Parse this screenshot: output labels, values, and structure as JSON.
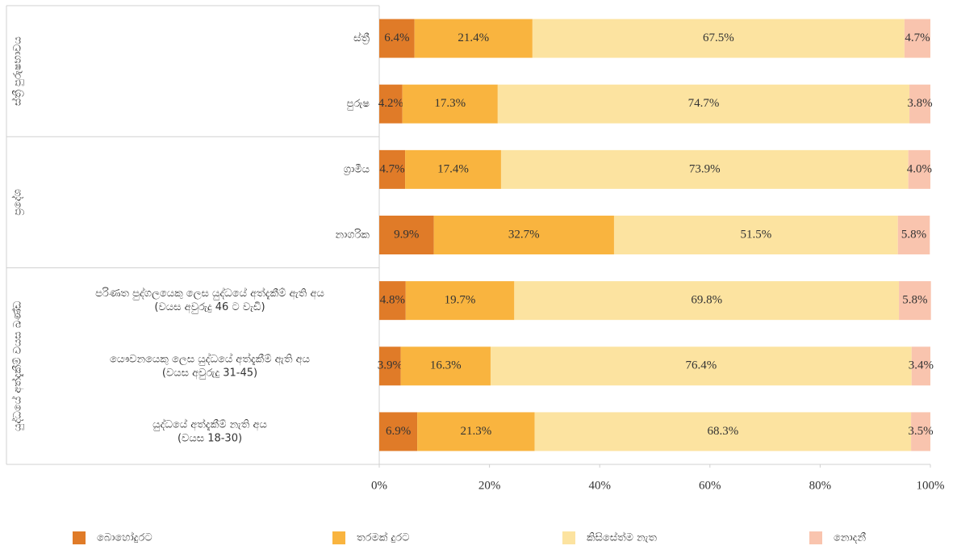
{
  "chart_data": {
    "type": "stacked_bar_horizontal",
    "groups": [
      {
        "label": "ස්ත්‍රී පුරුෂභාවය",
        "categories": [
          [
            "ස්ත්‍රී"
          ],
          [
            "පුරුෂ"
          ]
        ]
      },
      {
        "label": "ප්‍රදේශ",
        "categories": [
          [
            "ග්‍රාමීය"
          ],
          [
            "නාගරික"
          ]
        ]
      },
      {
        "label": "යුද්ධයේ අත්දැකීම් වයස ඛණ්ඩ",
        "categories": [
          [
            "පරිණත පුද්ගලයෙකු ලෙස යුද්ධයේ අත්දැකීම් ඇති අය",
            "(වයස අවුරුදු 46 ට වැඩි)"
          ],
          [
            "යෞවනයෙකු ලෙස යුද්ධයේ අත්දැකීම් ඇති අය",
            "(වයස අවුරුදු 31-45)"
          ],
          [
            "යුද්ධයේ අත්දැකීම් නැති අය",
            "(වයස 18-30)"
          ]
        ]
      }
    ],
    "series": [
      {
        "name": "බොහෝදුරට",
        "color": "#e07b28",
        "values": [
          6.4,
          4.2,
          4.7,
          9.9,
          4.8,
          3.9,
          6.9
        ],
        "value_labels": [
          "6.4%",
          "4.2%",
          "4.7%",
          "9.9%",
          "4.8%",
          "3.9%",
          "6.9%"
        ]
      },
      {
        "name": "තරමක් දුරට",
        "color": "#f9b43f",
        "values": [
          21.4,
          17.3,
          17.4,
          32.7,
          19.7,
          16.3,
          21.3
        ],
        "value_labels": [
          "21.4%",
          "17.3%",
          "17.4%",
          "32.7%",
          "19.7%",
          "16.3%",
          "21.3%"
        ]
      },
      {
        "name": "කිසිසේත්ම නැත",
        "color": "#fce3a0",
        "values": [
          67.5,
          74.7,
          73.9,
          51.5,
          69.8,
          76.4,
          68.3
        ],
        "value_labels": [
          "67.5%",
          "74.7%",
          "73.9%",
          "51.5%",
          "69.8%",
          "76.4%",
          "68.3%"
        ]
      },
      {
        "name": "නොදනී",
        "color": "#f9c4ae",
        "values": [
          4.7,
          3.8,
          4.0,
          5.8,
          5.8,
          3.4,
          3.5
        ],
        "value_labels": [
          "4.7%",
          "3.8%",
          "4.0%",
          "5.8%",
          "5.8%",
          "3.4%",
          "3.5%"
        ]
      }
    ],
    "xlim": [
      0,
      100
    ],
    "xticks": [
      {
        "value": 0,
        "label": "0%"
      },
      {
        "value": 20,
        "label": "20%"
      },
      {
        "value": 40,
        "label": "40%"
      },
      {
        "value": 60,
        "label": "60%"
      },
      {
        "value": 80,
        "label": "80%"
      },
      {
        "value": 100,
        "label": "100%"
      }
    ]
  }
}
